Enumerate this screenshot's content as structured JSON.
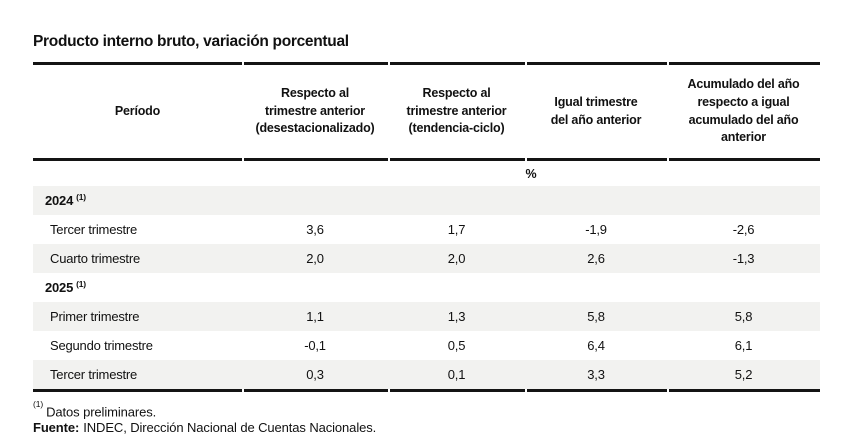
{
  "title": "Producto interno bruto, variación porcentual",
  "table": {
    "columns": [
      "Período",
      "Respecto al\ntrimestre anterior\n(desestacionalizado)",
      "Respecto al\ntrimestre anterior\n(tendencia-ciclo)",
      "Igual trimestre\ndel año anterior",
      "Acumulado del año\nrespecto a igual\nacumulado del año\nanterior"
    ],
    "unit": "%",
    "groups": [
      {
        "year": "2024",
        "note": "(1)",
        "rows": [
          {
            "label": "Tercer trimestre",
            "values": [
              "3,6",
              "1,7",
              "-1,9",
              "-2,6"
            ]
          },
          {
            "label": "Cuarto trimestre",
            "values": [
              "2,0",
              "2,0",
              "2,6",
              "-1,3"
            ]
          }
        ]
      },
      {
        "year": "2025",
        "note": "(1)",
        "rows": [
          {
            "label": "Primer trimestre",
            "values": [
              "1,1",
              "1,3",
              "5,8",
              "5,8"
            ]
          },
          {
            "label": "Segundo trimestre",
            "values": [
              "-0,1",
              "0,5",
              "6,4",
              "6,1"
            ]
          },
          {
            "label": "Tercer trimestre",
            "values": [
              "0,3",
              "0,1",
              "3,3",
              "5,2"
            ]
          }
        ]
      }
    ]
  },
  "footnotes": {
    "note_marker": "(1)",
    "note_text": "Datos preliminares.",
    "source_label": "Fuente:",
    "source_text": "INDEC, Dirección Nacional de Cuentas Nacionales."
  },
  "colors": {
    "row_shade": "#f2f2f0",
    "rule": "#141414",
    "text": "#111111"
  }
}
